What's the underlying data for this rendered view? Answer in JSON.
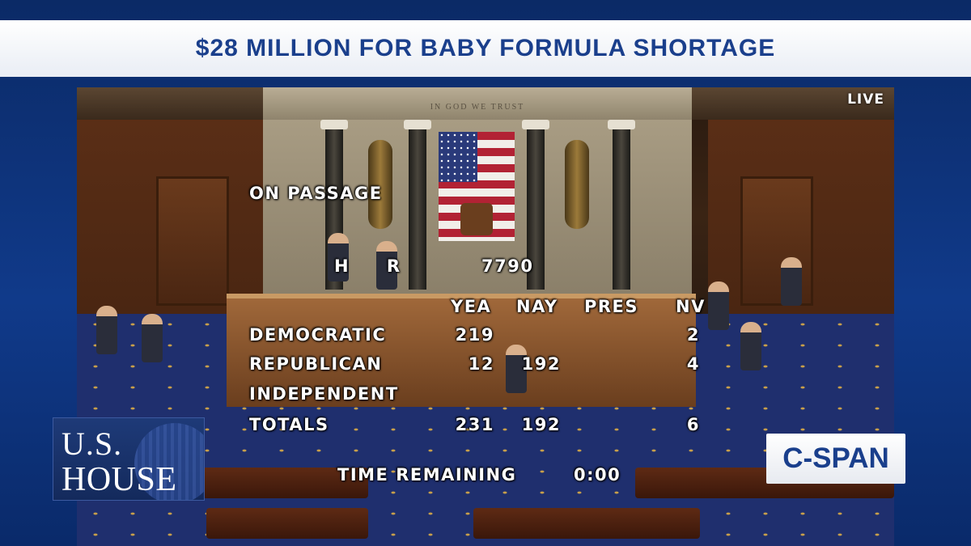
{
  "banner": {
    "title": "$28 MILLION FOR BABY FORMULA SHORTAGE"
  },
  "video": {
    "live_label": "LIVE",
    "motto": "IN GOD WE TRUST"
  },
  "vote": {
    "heading": "ON PASSAGE",
    "bill_prefix": "H R",
    "bill_number": "7790",
    "columns": [
      "YEA",
      "NAY",
      "PRES",
      "NV"
    ],
    "rows": [
      {
        "party": "DEMOCRATIC",
        "yea": "219",
        "nay": "",
        "pres": "",
        "nv": "2"
      },
      {
        "party": "REPUBLICAN",
        "yea": "12",
        "nay": "192",
        "pres": "",
        "nv": "4"
      },
      {
        "party": "INDEPENDENT",
        "yea": "",
        "nay": "",
        "pres": "",
        "nv": ""
      }
    ],
    "totals": {
      "label": "TOTALS",
      "yea": "231",
      "nay": "192",
      "pres": "",
      "nv": "6"
    },
    "time_remaining_label": "TIME REMAINING",
    "time_remaining_value": "0:00"
  },
  "logos": {
    "house_line1": "U.S.",
    "house_line2": "HOUSE",
    "cspan": "C-SPAN"
  }
}
